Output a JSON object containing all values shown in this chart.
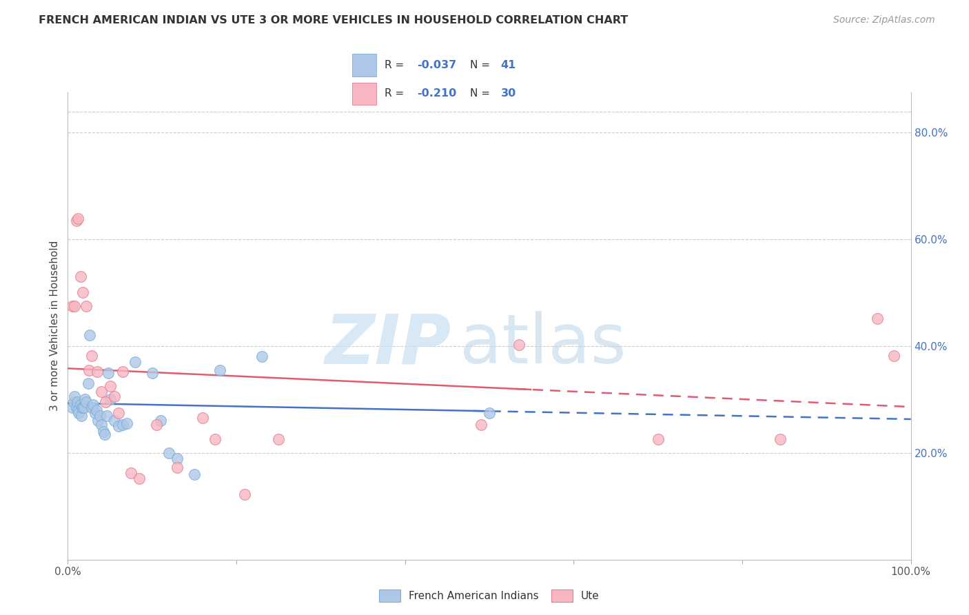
{
  "title": "FRENCH AMERICAN INDIAN VS UTE 3 OR MORE VEHICLES IN HOUSEHOLD CORRELATION CHART",
  "source": "Source: ZipAtlas.com",
  "ylabel": "3 or more Vehicles in Household",
  "xlim": [
    0.0,
    1.0
  ],
  "ylim": [
    0.0,
    0.875
  ],
  "ytick_vals": [
    0.2,
    0.4,
    0.6,
    0.8
  ],
  "yticklabels_right": [
    "20.0%",
    "40.0%",
    "60.0%",
    "80.0%"
  ],
  "blue_color": "#aec7e8",
  "blue_edge": "#7bafd4",
  "pink_color": "#f7b6c2",
  "pink_edge": "#e08090",
  "blue_line_color": "#4472c4",
  "pink_line_color": "#e05c70",
  "blue_scatter": [
    [
      0.005,
      0.285
    ],
    [
      0.007,
      0.295
    ],
    [
      0.008,
      0.305
    ],
    [
      0.01,
      0.285
    ],
    [
      0.011,
      0.295
    ],
    [
      0.012,
      0.28
    ],
    [
      0.013,
      0.275
    ],
    [
      0.015,
      0.29
    ],
    [
      0.016,
      0.27
    ],
    [
      0.017,
      0.285
    ],
    [
      0.018,
      0.285
    ],
    [
      0.019,
      0.285
    ],
    [
      0.02,
      0.3
    ],
    [
      0.022,
      0.295
    ],
    [
      0.024,
      0.33
    ],
    [
      0.026,
      0.42
    ],
    [
      0.028,
      0.285
    ],
    [
      0.03,
      0.29
    ],
    [
      0.032,
      0.275
    ],
    [
      0.034,
      0.28
    ],
    [
      0.036,
      0.26
    ],
    [
      0.038,
      0.27
    ],
    [
      0.04,
      0.252
    ],
    [
      0.042,
      0.24
    ],
    [
      0.044,
      0.235
    ],
    [
      0.046,
      0.27
    ],
    [
      0.048,
      0.35
    ],
    [
      0.05,
      0.3
    ],
    [
      0.055,
      0.26
    ],
    [
      0.06,
      0.25
    ],
    [
      0.065,
      0.252
    ],
    [
      0.07,
      0.255
    ],
    [
      0.08,
      0.37
    ],
    [
      0.1,
      0.35
    ],
    [
      0.11,
      0.26
    ],
    [
      0.12,
      0.2
    ],
    [
      0.13,
      0.19
    ],
    [
      0.15,
      0.16
    ],
    [
      0.18,
      0.355
    ],
    [
      0.23,
      0.38
    ],
    [
      0.5,
      0.275
    ]
  ],
  "pink_scatter": [
    [
      0.005,
      0.475
    ],
    [
      0.008,
      0.475
    ],
    [
      0.01,
      0.635
    ],
    [
      0.012,
      0.638
    ],
    [
      0.015,
      0.53
    ],
    [
      0.018,
      0.5
    ],
    [
      0.022,
      0.475
    ],
    [
      0.025,
      0.355
    ],
    [
      0.028,
      0.382
    ],
    [
      0.035,
      0.352
    ],
    [
      0.04,
      0.315
    ],
    [
      0.045,
      0.295
    ],
    [
      0.05,
      0.325
    ],
    [
      0.055,
      0.305
    ],
    [
      0.06,
      0.275
    ],
    [
      0.065,
      0.352
    ],
    [
      0.075,
      0.162
    ],
    [
      0.085,
      0.152
    ],
    [
      0.105,
      0.252
    ],
    [
      0.13,
      0.172
    ],
    [
      0.16,
      0.265
    ],
    [
      0.175,
      0.225
    ],
    [
      0.21,
      0.122
    ],
    [
      0.25,
      0.225
    ],
    [
      0.49,
      0.252
    ],
    [
      0.535,
      0.402
    ],
    [
      0.7,
      0.225
    ],
    [
      0.845,
      0.225
    ],
    [
      0.96,
      0.452
    ],
    [
      0.98,
      0.382
    ]
  ],
  "blue_R": -0.037,
  "blue_N": 41,
  "pink_R": -0.21,
  "pink_N": 30,
  "blue_intercept": 0.293,
  "blue_slope": -0.03,
  "pink_intercept": 0.358,
  "pink_slope": -0.072,
  "background_color": "#ffffff",
  "grid_color": "#cccccc",
  "right_tick_color": "#4472c4",
  "title_color": "#333333",
  "source_color": "#999999"
}
